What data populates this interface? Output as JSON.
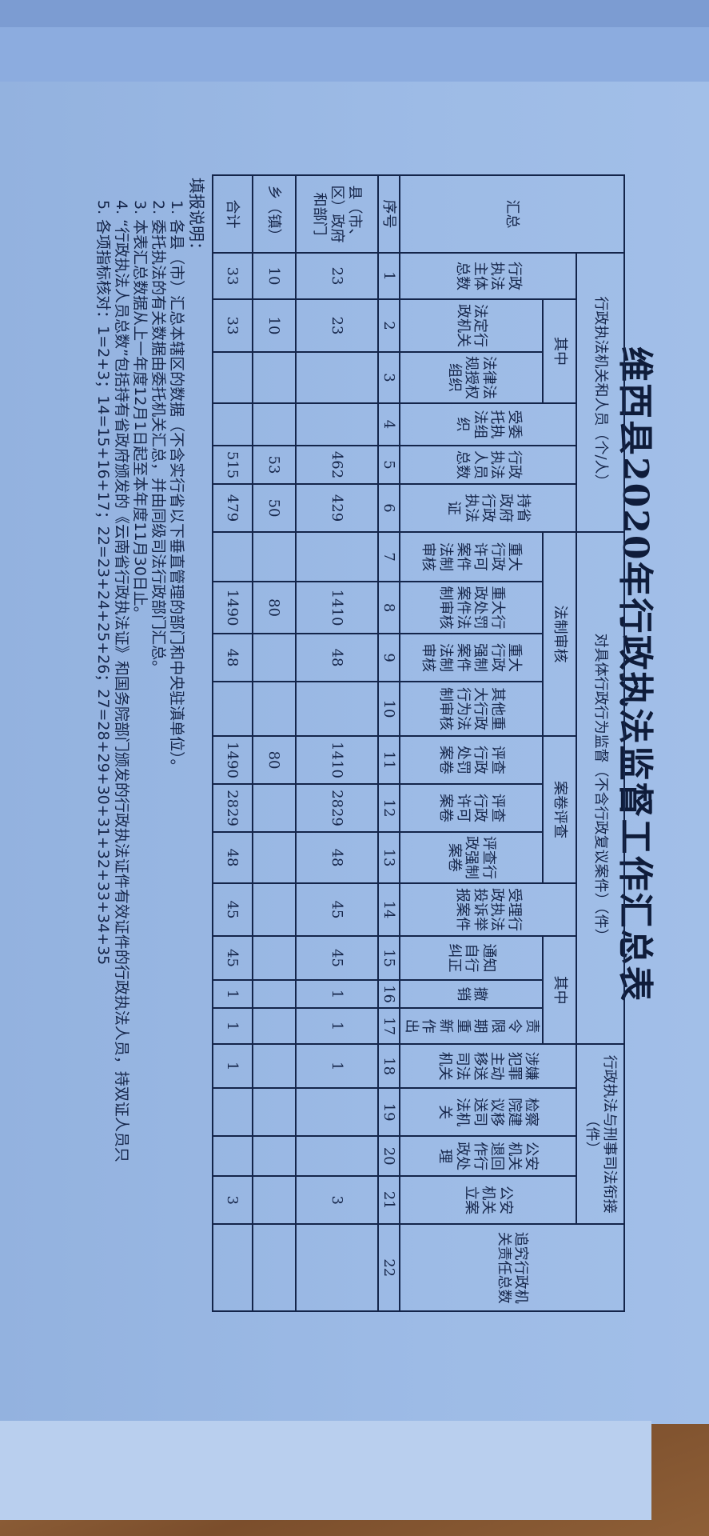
{
  "title": "维西县2020年行政执法监督工作汇总表",
  "table": {
    "label_header": "汇总",
    "index_label": "序号",
    "groups": {
      "agencies": "行政执法机关和人员（个/人）",
      "agencies_of_which": "其中",
      "supervision": "对具体行政行为监督（不含行政复议案件）（件）",
      "legal_review": "法制审核",
      "case_review": "案卷评查",
      "complaints_of_which": "其中",
      "criminal_link": "行政执法与刑事司法衔接（件）"
    },
    "headers": [
      "行政执法主体总数",
      "法定行政机关",
      "法律法规授权组织",
      "受委托执法组织",
      "行政执法人员总数",
      "持省政府行政执法证",
      "重大行政许可案件法制审核",
      "重大行政处罚案件法制审核",
      "重大行政强制案件法制审核",
      "其他重大行政行为法制审核",
      "评查行政处罚案卷",
      "评查行政许可案卷",
      "评查行政强制案卷",
      "受理行政执法投诉举报案件",
      "通知自行纠正",
      "撤销",
      "责令限期重新作出",
      "涉嫌犯罪主动移送司法机关",
      "检察院建议移送司法机关",
      "公安机关退回作行政处理",
      "公安机关立案",
      "追究行政机关责任总数"
    ],
    "column_numbers": [
      "1",
      "2",
      "3",
      "4",
      "5",
      "6",
      "7",
      "8",
      "9",
      "10",
      "11",
      "12",
      "13",
      "14",
      "15",
      "16",
      "17",
      "18",
      "19",
      "20",
      "21",
      "22"
    ],
    "rows": [
      {
        "label": "县（市、区）政府和部门",
        "values": [
          "23",
          "23",
          "",
          "",
          "462",
          "429",
          "",
          "1410",
          "48",
          "",
          "1410",
          "2829",
          "48",
          "45",
          "45",
          "1",
          "1",
          "1",
          "",
          "",
          "3",
          ""
        ]
      },
      {
        "label": "乡（镇）",
        "values": [
          "10",
          "10",
          "",
          "",
          "53",
          "50",
          "",
          "80",
          "",
          "",
          "80",
          "",
          "",
          "",
          "",
          "",
          "",
          "",
          "",
          "",
          "",
          ""
        ]
      },
      {
        "label": "合计",
        "values": [
          "33",
          "33",
          "",
          "",
          "515",
          "479",
          "",
          "1490",
          "48",
          "",
          "1490",
          "2829",
          "48",
          "45",
          "45",
          "1",
          "1",
          "1",
          "",
          "",
          "3",
          ""
        ]
      }
    ]
  },
  "notes": {
    "heading": "填报说明：",
    "lines": [
      "1. 各县（市）汇总本辖区的数据（不含实行省以下垂直管理的部门和中央驻滇单位）。",
      "2. 委托执法的有关数据由委托机关汇总，并由同级司法行政部门汇总。",
      "3. 本表汇总数据从上一年度12月1日起至本年度11月30日止。",
      "4. “行政执法人员总数”包括持有省政府颁发的《云南省行政执法证》和国务院部门颁发的行政执法证件有效证件的行政执法人员，持双证人员只",
      "5. 各项指标核对：1=2+3；14=15+16+17；22=23+24+25+26；27=28+29+30+31+32+33+34+35"
    ]
  },
  "colors": {
    "ink": "#16264a",
    "paper": "#9dbbe6",
    "grid": "#14254a"
  }
}
